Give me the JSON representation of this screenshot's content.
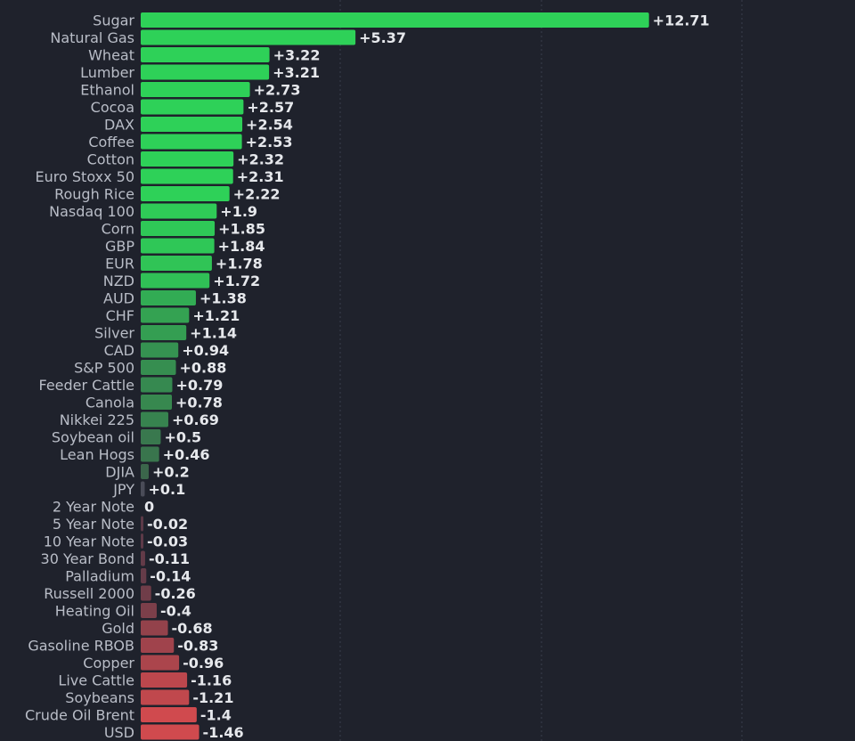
{
  "chart_data": {
    "type": "bar",
    "orientation": "horizontal",
    "grid": true,
    "colors": {
      "background": "#1f222c",
      "strong_positive": "#2ed158",
      "weak_positive": "#3c5a4a",
      "neutral": "#4a4c58",
      "weak_negative": "#5a3a48",
      "strong_negative": "#d04a4e",
      "label": "#b9bdc7",
      "value_label": "#e6e8ec"
    },
    "categories": [
      "Sugar",
      "Natural Gas",
      "Wheat",
      "Lumber",
      "Ethanol",
      "Cocoa",
      "DAX",
      "Coffee",
      "Cotton",
      "Euro Stoxx 50",
      "Rough Rice",
      "Nasdaq 100",
      "Corn",
      "GBP",
      "EUR",
      "NZD",
      "AUD",
      "CHF",
      "Silver",
      "CAD",
      "S&P 500",
      "Feeder Cattle",
      "Canola",
      "Nikkei 225",
      "Soybean oil",
      "Lean Hogs",
      "DJIA",
      "JPY",
      "2 Year Note",
      "5 Year Note",
      "10 Year Note",
      "30 Year Bond",
      "Palladium",
      "Russell 2000",
      "Heating Oil",
      "Gold",
      "Gasoline RBOB",
      "Copper",
      "Live Cattle",
      "Soybeans",
      "Crude Oil Brent",
      "USD"
    ],
    "values": [
      12.71,
      5.37,
      3.22,
      3.21,
      2.73,
      2.57,
      2.54,
      2.53,
      2.32,
      2.31,
      2.22,
      1.9,
      1.85,
      1.84,
      1.78,
      1.72,
      1.38,
      1.21,
      1.14,
      0.94,
      0.88,
      0.79,
      0.78,
      0.69,
      0.5,
      0.46,
      0.2,
      0.1,
      0,
      -0.02,
      -0.03,
      -0.11,
      -0.14,
      -0.26,
      -0.4,
      -0.68,
      -0.83,
      -0.96,
      -1.16,
      -1.21,
      -1.4,
      -1.46
    ],
    "value_labels": [
      "+12.71",
      "+5.37",
      "+3.22",
      "+3.21",
      "+2.73",
      "+2.57",
      "+2.54",
      "+2.53",
      "+2.32",
      "+2.31",
      "+2.22",
      "+1.9",
      "+1.85",
      "+1.84",
      "+1.78",
      "+1.72",
      "+1.38",
      "+1.21",
      "+1.14",
      "+0.94",
      "+0.88",
      "+0.79",
      "+0.78",
      "+0.69",
      "+0.5",
      "+0.46",
      "+0.2",
      "+0.1",
      "0",
      "-0.02",
      "-0.03",
      "-0.11",
      "-0.14",
      "-0.26",
      "-0.4",
      "-0.68",
      "-0.83",
      "-0.96",
      "-1.16",
      "-1.21",
      "-1.4",
      "-1.46"
    ]
  }
}
